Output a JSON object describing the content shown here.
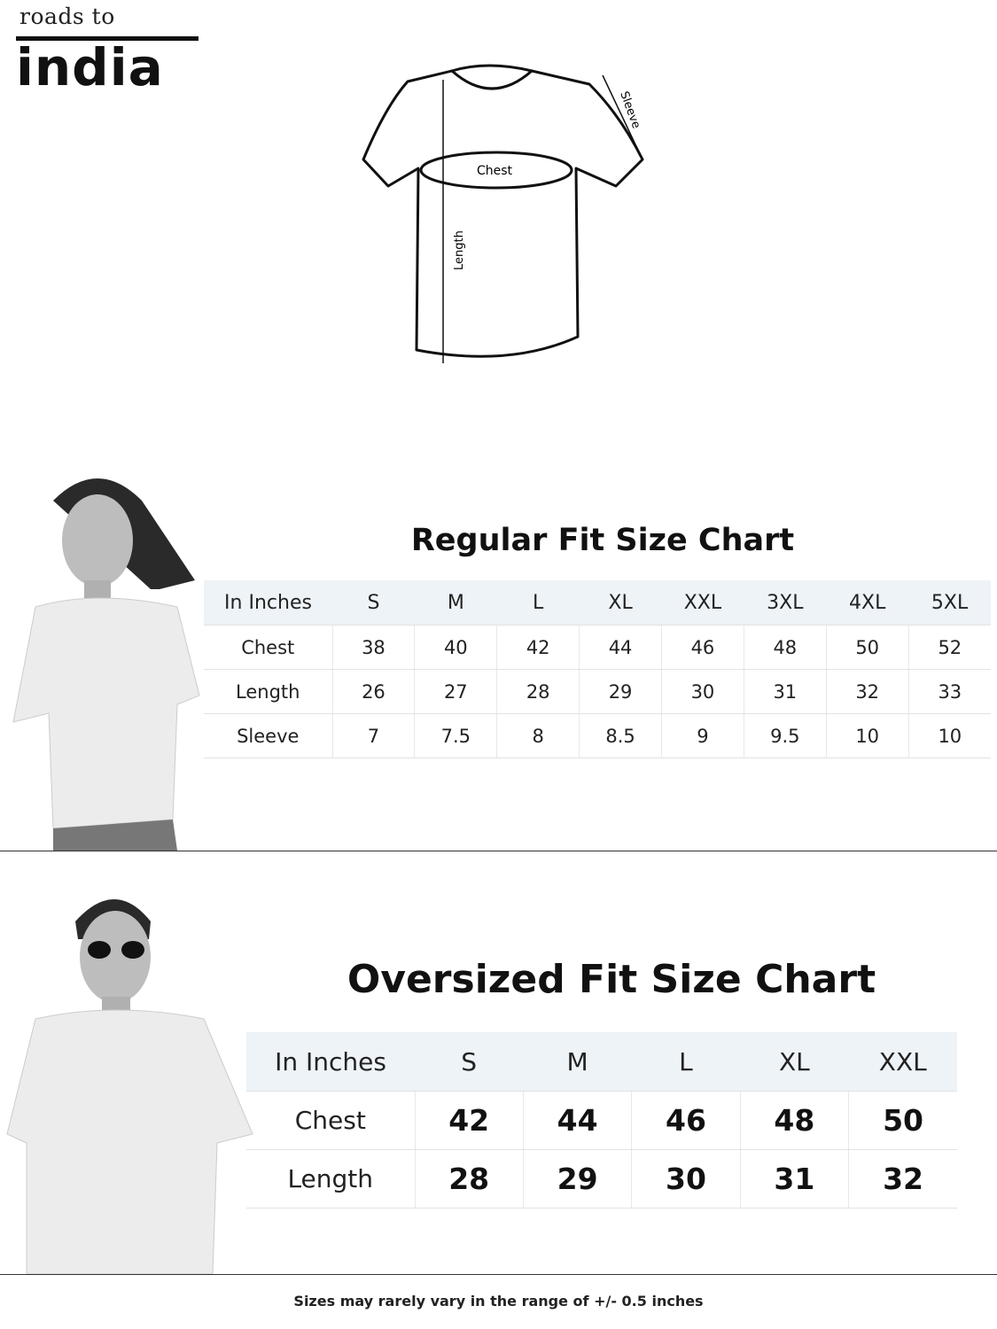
{
  "brand": {
    "logo_top": "roads to",
    "logo_bottom": "india"
  },
  "diagram": {
    "labels": {
      "chest": "Chest",
      "length": "Length",
      "sleeve": "Sleeve"
    }
  },
  "regular": {
    "title": "Regular Fit Size Chart",
    "headers": [
      "In Inches",
      "S",
      "M",
      "L",
      "XL",
      "XXL",
      "3XL",
      "4XL",
      "5XL"
    ],
    "rows": [
      {
        "label": "Chest",
        "values": [
          "38",
          "40",
          "42",
          "44",
          "46",
          "48",
          "50",
          "52"
        ]
      },
      {
        "label": "Length",
        "values": [
          "26",
          "27",
          "28",
          "29",
          "30",
          "31",
          "32",
          "33"
        ]
      },
      {
        "label": "Sleeve",
        "values": [
          "7",
          "7.5",
          "8",
          "8.5",
          "9",
          "9.5",
          "10",
          "10"
        ]
      }
    ]
  },
  "oversized": {
    "title": "Oversized Fit Size Chart",
    "headers": [
      "In Inches",
      "S",
      "M",
      "L",
      "XL",
      "XXL"
    ],
    "rows": [
      {
        "label": "Chest",
        "values": [
          "42",
          "44",
          "46",
          "48",
          "50"
        ]
      },
      {
        "label": "Length",
        "values": [
          "28",
          "29",
          "30",
          "31",
          "32"
        ]
      }
    ]
  },
  "footer": "Sizes may rarely vary in the range of +/- 0.5 inches",
  "colors": {
    "header_bg": "#eef3f8",
    "text": "#111111"
  }
}
